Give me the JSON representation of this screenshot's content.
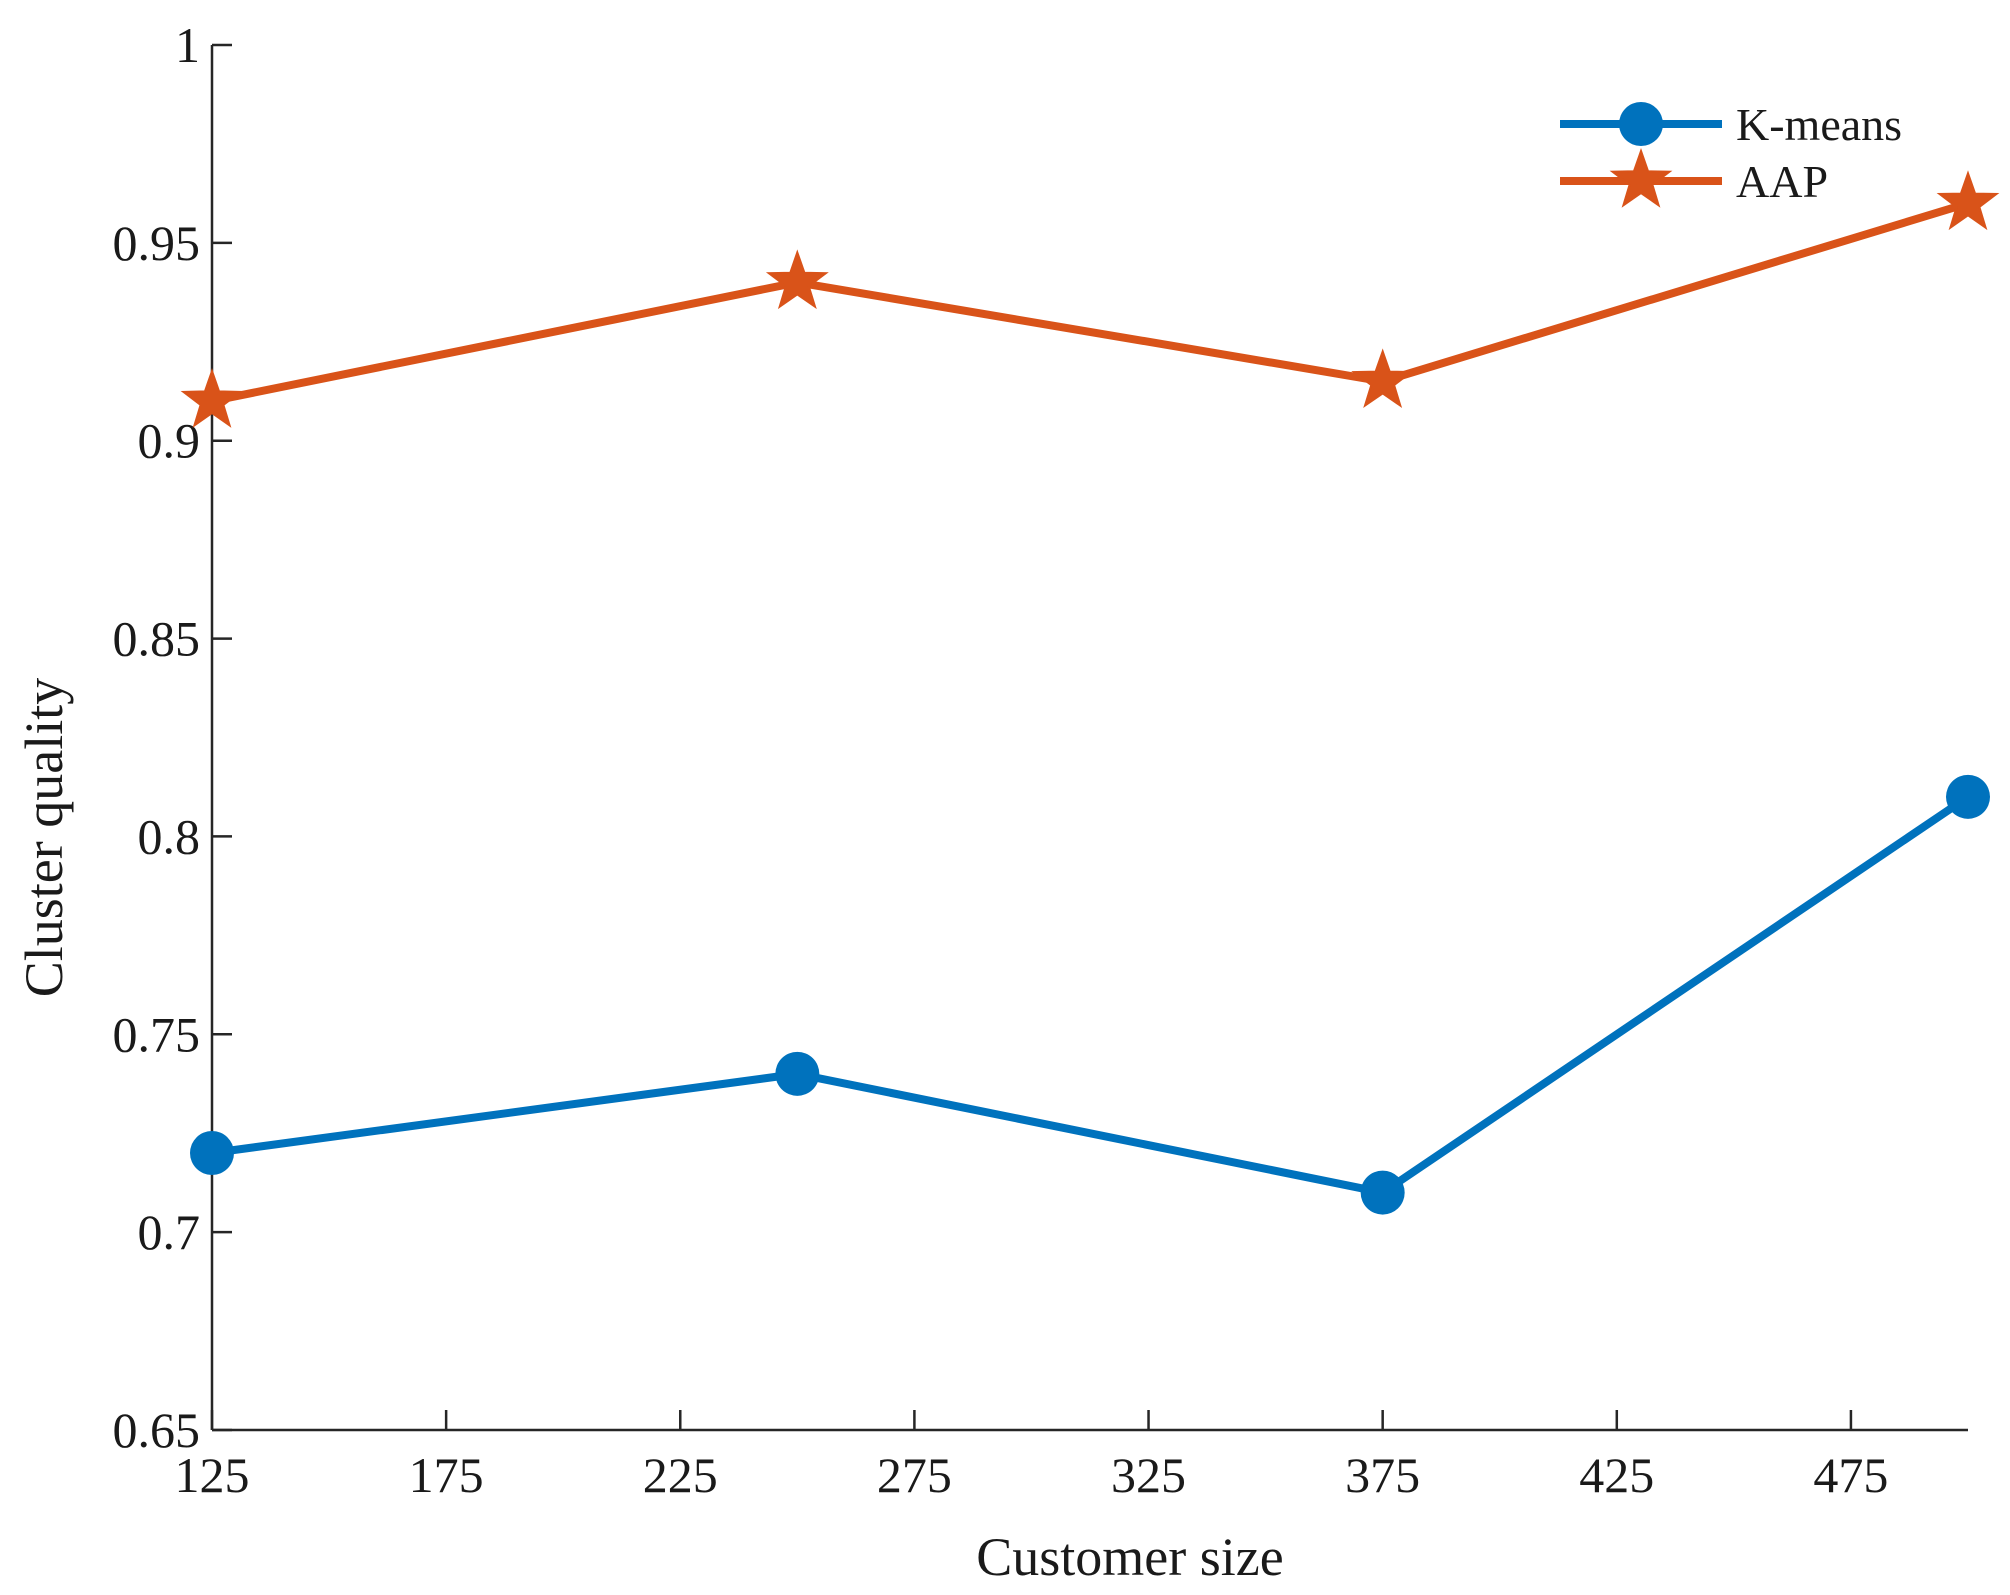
{
  "chart_data": {
    "type": "line",
    "title": "",
    "xlabel": "Customer size",
    "ylabel": "Cluster quality",
    "x": [
      125,
      250,
      375,
      500
    ],
    "xlim": [
      125,
      500
    ],
    "ylim": [
      0.65,
      1
    ],
    "xticks": [
      125,
      175,
      225,
      275,
      325,
      375,
      425,
      475
    ],
    "xtick_labels": [
      "125",
      "175",
      "225",
      "275",
      "325",
      "375",
      "425",
      "475"
    ],
    "yticks": [
      0.65,
      0.7,
      0.75,
      0.8,
      0.85,
      0.9,
      0.95,
      1
    ],
    "ytick_labels": [
      "0.65",
      "0.7",
      "0.75",
      "0.8",
      "0.85",
      "0.9",
      "0.95",
      "1"
    ],
    "grid": false,
    "legend_position": "top-right",
    "series": [
      {
        "name": "K-means",
        "marker": "circle",
        "color": "#0072BD",
        "values": [
          0.72,
          0.74,
          0.71,
          0.81
        ]
      },
      {
        "name": "AAP",
        "marker": "star",
        "color": "#D95319",
        "values": [
          0.91,
          0.94,
          0.915,
          0.96
        ]
      }
    ]
  }
}
